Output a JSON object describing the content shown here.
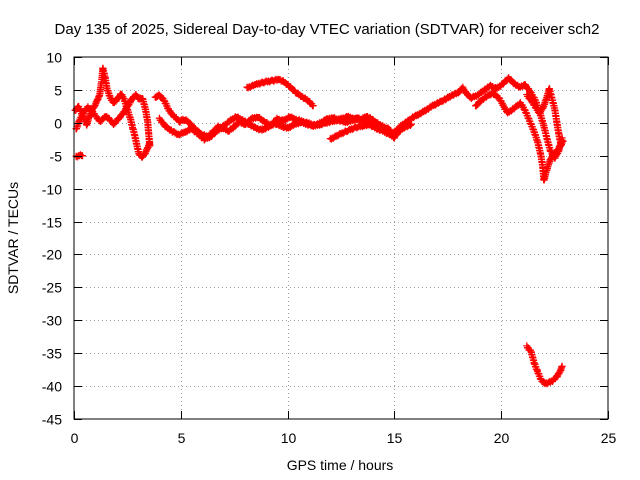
{
  "chart_data": {
    "type": "scatter",
    "title": "Day 135 of 2025, Sidereal Day-to-day VTEC variation (SDTVAR) for receiver sch2",
    "xlabel": "GPS time / hours",
    "ylabel": "SDTVAR / TECUs",
    "xlim": [
      0,
      25
    ],
    "ylim": [
      -45,
      10
    ],
    "xticks": [
      0,
      5,
      10,
      15,
      20,
      25
    ],
    "yticks": [
      10,
      5,
      0,
      -5,
      -10,
      -15,
      -20,
      -25,
      -30,
      -35,
      -40,
      -45
    ],
    "grid": true,
    "marker": "+",
    "color": "#ff0000",
    "series": [
      {
        "name": "sch2",
        "segments": [
          [
            [
              0.05,
              1.8
            ],
            [
              0.2,
              2.5
            ],
            [
              0.35,
              1.5
            ],
            [
              0.5,
              0.5
            ],
            [
              0.6,
              -0.3
            ],
            [
              0.7,
              0.8
            ],
            [
              0.85,
              2.0
            ],
            [
              1.0,
              2.8
            ],
            [
              1.1,
              3.5
            ],
            [
              1.2,
              4.2
            ],
            [
              1.3,
              6.5
            ],
            [
              1.35,
              8.3
            ],
            [
              1.45,
              7.0
            ],
            [
              1.55,
              5.2
            ],
            [
              1.7,
              3.8
            ],
            [
              1.85,
              3.0
            ],
            [
              2.0,
              3.5
            ],
            [
              2.2,
              4.4
            ],
            [
              2.35,
              3.6
            ],
            [
              2.45,
              2.5
            ],
            [
              2.55,
              1.5
            ],
            [
              2.65,
              0.5
            ],
            [
              2.75,
              -0.8
            ],
            [
              2.85,
              -2.0
            ],
            [
              2.95,
              -3.5
            ],
            [
              3.05,
              -4.8
            ],
            [
              3.2,
              -5.2
            ],
            [
              3.35,
              -4.5
            ],
            [
              3.45,
              -3.8
            ],
            [
              3.55,
              -3.0
            ]
          ],
          [
            [
              0.1,
              -1.0
            ],
            [
              0.25,
              0.3
            ],
            [
              0.45,
              1.6
            ],
            [
              0.65,
              2.4
            ],
            [
              0.85,
              1.8
            ],
            [
              1.05,
              0.8
            ],
            [
              1.25,
              0.2
            ],
            [
              1.45,
              1.0
            ],
            [
              1.65,
              0.6
            ],
            [
              1.85,
              -0.2
            ],
            [
              2.05,
              0.5
            ],
            [
              2.25,
              1.2
            ],
            [
              2.45,
              2.2
            ],
            [
              2.6,
              3.0
            ],
            [
              2.75,
              3.8
            ],
            [
              2.9,
              4.2
            ],
            [
              3.05,
              3.6
            ],
            [
              3.2,
              3.8
            ],
            [
              3.35,
              2.0
            ],
            [
              3.45,
              0.2
            ],
            [
              3.5,
              -1.8
            ],
            [
              3.55,
              -3.5
            ]
          ],
          [
            [
              0.1,
              -5.2
            ],
            [
              0.25,
              -5.0
            ],
            [
              0.4,
              -4.9
            ]
          ],
          [
            [
              3.8,
              3.8
            ],
            [
              3.95,
              4.2
            ],
            [
              4.1,
              3.9
            ],
            [
              4.25,
              3.2
            ],
            [
              4.4,
              2.2
            ],
            [
              4.55,
              1.4
            ],
            [
              4.75,
              0.8
            ],
            [
              4.95,
              0.2
            ],
            [
              5.1,
              0.5
            ],
            [
              5.3,
              0.3
            ],
            [
              5.5,
              -0.4
            ],
            [
              5.75,
              -1.2
            ],
            [
              6.0,
              -1.8
            ],
            [
              6.25,
              -2.1
            ],
            [
              6.5,
              -1.4
            ],
            [
              6.75,
              -0.6
            ],
            [
              7.0,
              -0.9
            ],
            [
              7.25,
              -1.2
            ],
            [
              7.5,
              -0.6
            ],
            [
              7.75,
              0.2
            ],
            [
              8.0,
              -0.3
            ],
            [
              8.3,
              0.6
            ],
            [
              8.6,
              0.9
            ],
            [
              8.9,
              0.2
            ],
            [
              9.2,
              -0.4
            ],
            [
              9.5,
              0.6
            ],
            [
              9.8,
              0.3
            ],
            [
              10.1,
              0.9
            ],
            [
              10.4,
              0.5
            ],
            [
              10.7,
              0.2
            ],
            [
              11.0,
              -0.1
            ],
            [
              11.3,
              -0.4
            ],
            [
              11.6,
              -0.2
            ],
            [
              11.9,
              0.1
            ],
            [
              12.2,
              0.3
            ],
            [
              12.5,
              0.6
            ],
            [
              12.8,
              0.9
            ],
            [
              13.1,
              0.7
            ],
            [
              13.4,
              0.4
            ],
            [
              13.7,
              1.0
            ],
            [
              14.0,
              0.4
            ],
            [
              14.3,
              -0.3
            ],
            [
              14.6,
              -1.0
            ],
            [
              14.9,
              -1.6
            ],
            [
              15.1,
              -1.2
            ],
            [
              15.3,
              -0.5
            ],
            [
              15.6,
              0.2
            ],
            [
              15.9,
              0.9
            ],
            [
              16.2,
              1.4
            ],
            [
              16.5,
              2.0
            ],
            [
              16.8,
              2.6
            ],
            [
              17.1,
              3.1
            ],
            [
              17.4,
              3.6
            ],
            [
              17.7,
              4.2
            ],
            [
              18.0,
              4.6
            ],
            [
              18.2,
              5.3
            ],
            [
              18.35,
              4.5
            ],
            [
              18.6,
              3.8
            ],
            [
              18.9,
              4.2
            ],
            [
              19.2,
              5.0
            ],
            [
              19.5,
              5.6
            ],
            [
              19.8,
              5.2
            ],
            [
              20.1,
              6.0
            ],
            [
              20.35,
              6.8
            ],
            [
              20.6,
              6.0
            ],
            [
              20.85,
              5.4
            ],
            [
              21.1,
              5.8
            ],
            [
              21.35,
              4.8
            ],
            [
              21.6,
              3.4
            ],
            [
              21.8,
              1.6
            ],
            [
              22.0,
              -0.5
            ],
            [
              22.15,
              -2.5
            ],
            [
              22.3,
              -4.2
            ],
            [
              22.5,
              -5.4
            ],
            [
              22.7,
              -4.2
            ],
            [
              22.85,
              -2.4
            ]
          ],
          [
            [
              4.0,
              0.6
            ],
            [
              4.3,
              -0.6
            ],
            [
              4.6,
              -1.3
            ],
            [
              4.9,
              -1.8
            ],
            [
              5.2,
              -1.4
            ],
            [
              5.5,
              -0.9
            ],
            [
              5.8,
              -1.7
            ],
            [
              6.1,
              -2.5
            ],
            [
              6.4,
              -2.1
            ],
            [
              6.7,
              -1.2
            ],
            [
              7.0,
              -0.5
            ],
            [
              7.3,
              0.3
            ],
            [
              7.6,
              0.9
            ],
            [
              7.9,
              0.4
            ],
            [
              8.2,
              -0.2
            ],
            [
              8.5,
              -0.8
            ],
            [
              8.8,
              -1.1
            ],
            [
              9.1,
              -0.6
            ],
            [
              9.4,
              -0.1
            ],
            [
              9.7,
              -0.5
            ],
            [
              10.0,
              -0.8
            ],
            [
              10.3,
              -0.3
            ],
            [
              10.6,
              0.1
            ],
            [
              10.9,
              -0.2
            ],
            [
              11.2,
              -0.5
            ],
            [
              11.5,
              -0.1
            ],
            [
              11.8,
              0.5
            ],
            [
              12.1,
              0.8
            ],
            [
              12.4,
              0.4
            ],
            [
              12.7,
              0.1
            ],
            [
              13.0,
              0.3
            ],
            [
              13.3,
              0.7
            ],
            [
              13.6,
              0.2
            ],
            [
              13.9,
              -0.4
            ],
            [
              14.2,
              -0.9
            ],
            [
              14.5,
              -1.3
            ],
            [
              14.8,
              -1.8
            ],
            [
              15.0,
              -2.2
            ],
            [
              15.2,
              -1.3
            ],
            [
              15.5,
              -0.6
            ],
            [
              15.8,
              -0.3
            ]
          ],
          [
            [
              8.1,
              5.3
            ],
            [
              8.5,
              5.8
            ],
            [
              8.9,
              6.2
            ],
            [
              9.3,
              6.4
            ],
            [
              9.6,
              6.6
            ],
            [
              9.8,
              6.3
            ],
            [
              10.1,
              5.5
            ],
            [
              10.4,
              4.6
            ],
            [
              10.7,
              3.9
            ],
            [
              11.0,
              3.3
            ],
            [
              11.2,
              2.5
            ]
          ],
          [
            [
              12.0,
              -2.5
            ],
            [
              12.4,
              -1.8
            ],
            [
              12.8,
              -1.2
            ],
            [
              13.2,
              -0.7
            ],
            [
              13.6,
              -0.4
            ],
            [
              14.0,
              -0.1
            ],
            [
              14.4,
              -0.5
            ],
            [
              14.8,
              -1.0
            ]
          ],
          [
            [
              18.8,
              2.5
            ],
            [
              19.0,
              3.2
            ],
            [
              19.3,
              4.0
            ],
            [
              19.6,
              4.5
            ],
            [
              19.9,
              3.8
            ],
            [
              20.1,
              2.6
            ],
            [
              20.3,
              1.5
            ],
            [
              20.6,
              2.2
            ],
            [
              20.9,
              3.0
            ],
            [
              21.1,
              2.0
            ],
            [
              21.3,
              0.5
            ],
            [
              21.5,
              -1.0
            ],
            [
              21.7,
              -2.8
            ],
            [
              21.85,
              -4.8
            ],
            [
              21.95,
              -6.8
            ],
            [
              22.0,
              -8.8
            ],
            [
              22.1,
              -7.5
            ],
            [
              22.25,
              -6.0
            ],
            [
              22.4,
              -5.0
            ],
            [
              22.6,
              -4.3
            ],
            [
              22.75,
              -3.6
            ],
            [
              22.9,
              -2.8
            ]
          ],
          [
            [
              21.2,
              4.2
            ],
            [
              21.4,
              3.4
            ],
            [
              21.6,
              2.4
            ],
            [
              21.8,
              1.4
            ],
            [
              22.0,
              2.6
            ],
            [
              22.15,
              4.0
            ],
            [
              22.25,
              5.2
            ],
            [
              22.35,
              4.0
            ],
            [
              22.5,
              2.2
            ],
            [
              22.6,
              0.2
            ],
            [
              22.7,
              -1.8
            ],
            [
              22.8,
              -3.4
            ]
          ],
          [
            [
              21.2,
              -34.0
            ],
            [
              21.4,
              -34.8
            ],
            [
              21.55,
              -36.5
            ],
            [
              21.7,
              -37.8
            ],
            [
              21.85,
              -38.9
            ],
            [
              22.0,
              -39.6
            ],
            [
              22.2,
              -39.5
            ],
            [
              22.4,
              -39.2
            ],
            [
              22.6,
              -38.6
            ],
            [
              22.75,
              -37.8
            ],
            [
              22.85,
              -37.1
            ]
          ]
        ]
      }
    ]
  }
}
